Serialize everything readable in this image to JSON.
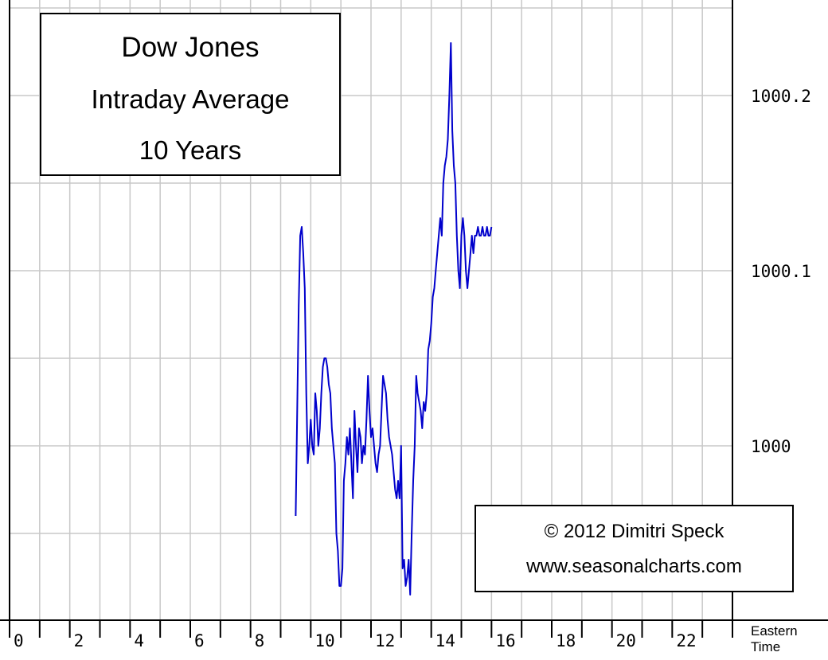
{
  "title_box": {
    "line1": "Dow Jones",
    "line2": "Intraday Average",
    "line3": "10 Years"
  },
  "credit": {
    "line1": "© 2012  Dimitri Speck",
    "line2": "www.seasonalcharts.com"
  },
  "colors": {
    "line": "#0000cc",
    "grid": "#c8c8c8",
    "axis": "#000000",
    "background": "#ffffff"
  },
  "chart_data": {
    "type": "line",
    "title": "Dow Jones Intraday Average 10 Years",
    "xlabel": "Eastern Time",
    "ylabel": "",
    "xlim": [
      0,
      24
    ],
    "ylim": [
      999.92,
      1000.25
    ],
    "grid": true,
    "x_ticks": [
      "0",
      "2",
      "4",
      "6",
      "8",
      "10",
      "12",
      "14",
      "16",
      "18",
      "20",
      "22"
    ],
    "y_ticks": [
      {
        "value": 1000.2,
        "label": "1000.2"
      },
      {
        "value": 1000.1,
        "label": "1000.1"
      },
      {
        "value": 1000,
        "label": "1000"
      }
    ],
    "series": [
      {
        "x": [
          9.5,
          9.55,
          9.6,
          9.65,
          9.7,
          9.75,
          9.8,
          9.85,
          9.9,
          9.95,
          10.0,
          10.05,
          10.1,
          10.15,
          10.2,
          10.25,
          10.3,
          10.35,
          10.4,
          10.45,
          10.5,
          10.55,
          10.6,
          10.65,
          10.7,
          10.75,
          10.8,
          10.85,
          10.9,
          10.95,
          11.0,
          11.05,
          11.1,
          11.15,
          11.2,
          11.25,
          11.3,
          11.35,
          11.4,
          11.45,
          11.5,
          11.55,
          11.6,
          11.65,
          11.7,
          11.75,
          11.8,
          11.85,
          11.9,
          11.95,
          12.0,
          12.05,
          12.1,
          12.15,
          12.2,
          12.25,
          12.3,
          12.35,
          12.4,
          12.45,
          12.5,
          12.55,
          12.6,
          12.65,
          12.7,
          12.75,
          12.8,
          12.85,
          12.9,
          12.95,
          13.0,
          13.05,
          13.1,
          13.15,
          13.2,
          13.25,
          13.3,
          13.35,
          13.4,
          13.45,
          13.5,
          13.55,
          13.6,
          13.65,
          13.7,
          13.75,
          13.8,
          13.85,
          13.9,
          13.95,
          14.0,
          14.05,
          14.1,
          14.15,
          14.2,
          14.25,
          14.3,
          14.35,
          14.4,
          14.45,
          14.5,
          14.55,
          14.6,
          14.65,
          14.7,
          14.75,
          14.8,
          14.85,
          14.9,
          14.95,
          15.0,
          15.05,
          15.1,
          15.15,
          15.2,
          15.25,
          15.3,
          15.35,
          15.4,
          15.45,
          15.5,
          15.55,
          15.6,
          15.65,
          15.7,
          15.75,
          15.8,
          15.85,
          15.9,
          15.95,
          16.0
        ],
        "y": [
          999.96,
          1000.02,
          1000.08,
          1000.12,
          1000.125,
          1000.11,
          1000.09,
          1000.03,
          999.99,
          1000.0,
          1000.015,
          1000.0,
          999.995,
          1000.03,
          1000.02,
          1000.0,
          1000.01,
          1000.03,
          1000.045,
          1000.05,
          1000.05,
          1000.045,
          1000.035,
          1000.03,
          1000.01,
          1000.0,
          999.99,
          999.95,
          999.94,
          999.92,
          999.92,
          999.93,
          999.98,
          999.99,
          1000.005,
          999.995,
          1000.01,
          999.99,
          999.97,
          1000.02,
          1000.0,
          999.985,
          1000.01,
          1000.005,
          999.99,
          1000.0,
          999.995,
          1000.015,
          1000.04,
          1000.02,
          1000.005,
          1000.01,
          1000.0,
          999.99,
          999.985,
          999.995,
          1000.0,
          1000.02,
          1000.04,
          1000.035,
          1000.03,
          1000.015,
          1000.005,
          1000.0,
          999.995,
          999.985,
          999.975,
          999.97,
          999.98,
          999.97,
          1000.0,
          999.93,
          999.935,
          999.92,
          999.925,
          999.935,
          999.915,
          999.95,
          999.98,
          1000.0,
          1000.04,
          1000.03,
          1000.025,
          1000.02,
          1000.01,
          1000.025,
          1000.02,
          1000.03,
          1000.055,
          1000.06,
          1000.07,
          1000.085,
          1000.09,
          1000.1,
          1000.11,
          1000.12,
          1000.13,
          1000.12,
          1000.15,
          1000.16,
          1000.165,
          1000.175,
          1000.2,
          1000.23,
          1000.18,
          1000.16,
          1000.15,
          1000.12,
          1000.1,
          1000.09,
          1000.12,
          1000.13,
          1000.12,
          1000.1,
          1000.09,
          1000.1,
          1000.11,
          1000.12,
          1000.11,
          1000.12,
          1000.12,
          1000.125,
          1000.12,
          1000.12,
          1000.125,
          1000.12,
          1000.12,
          1000.125,
          1000.12,
          1000.12,
          1000.125
        ]
      }
    ]
  }
}
